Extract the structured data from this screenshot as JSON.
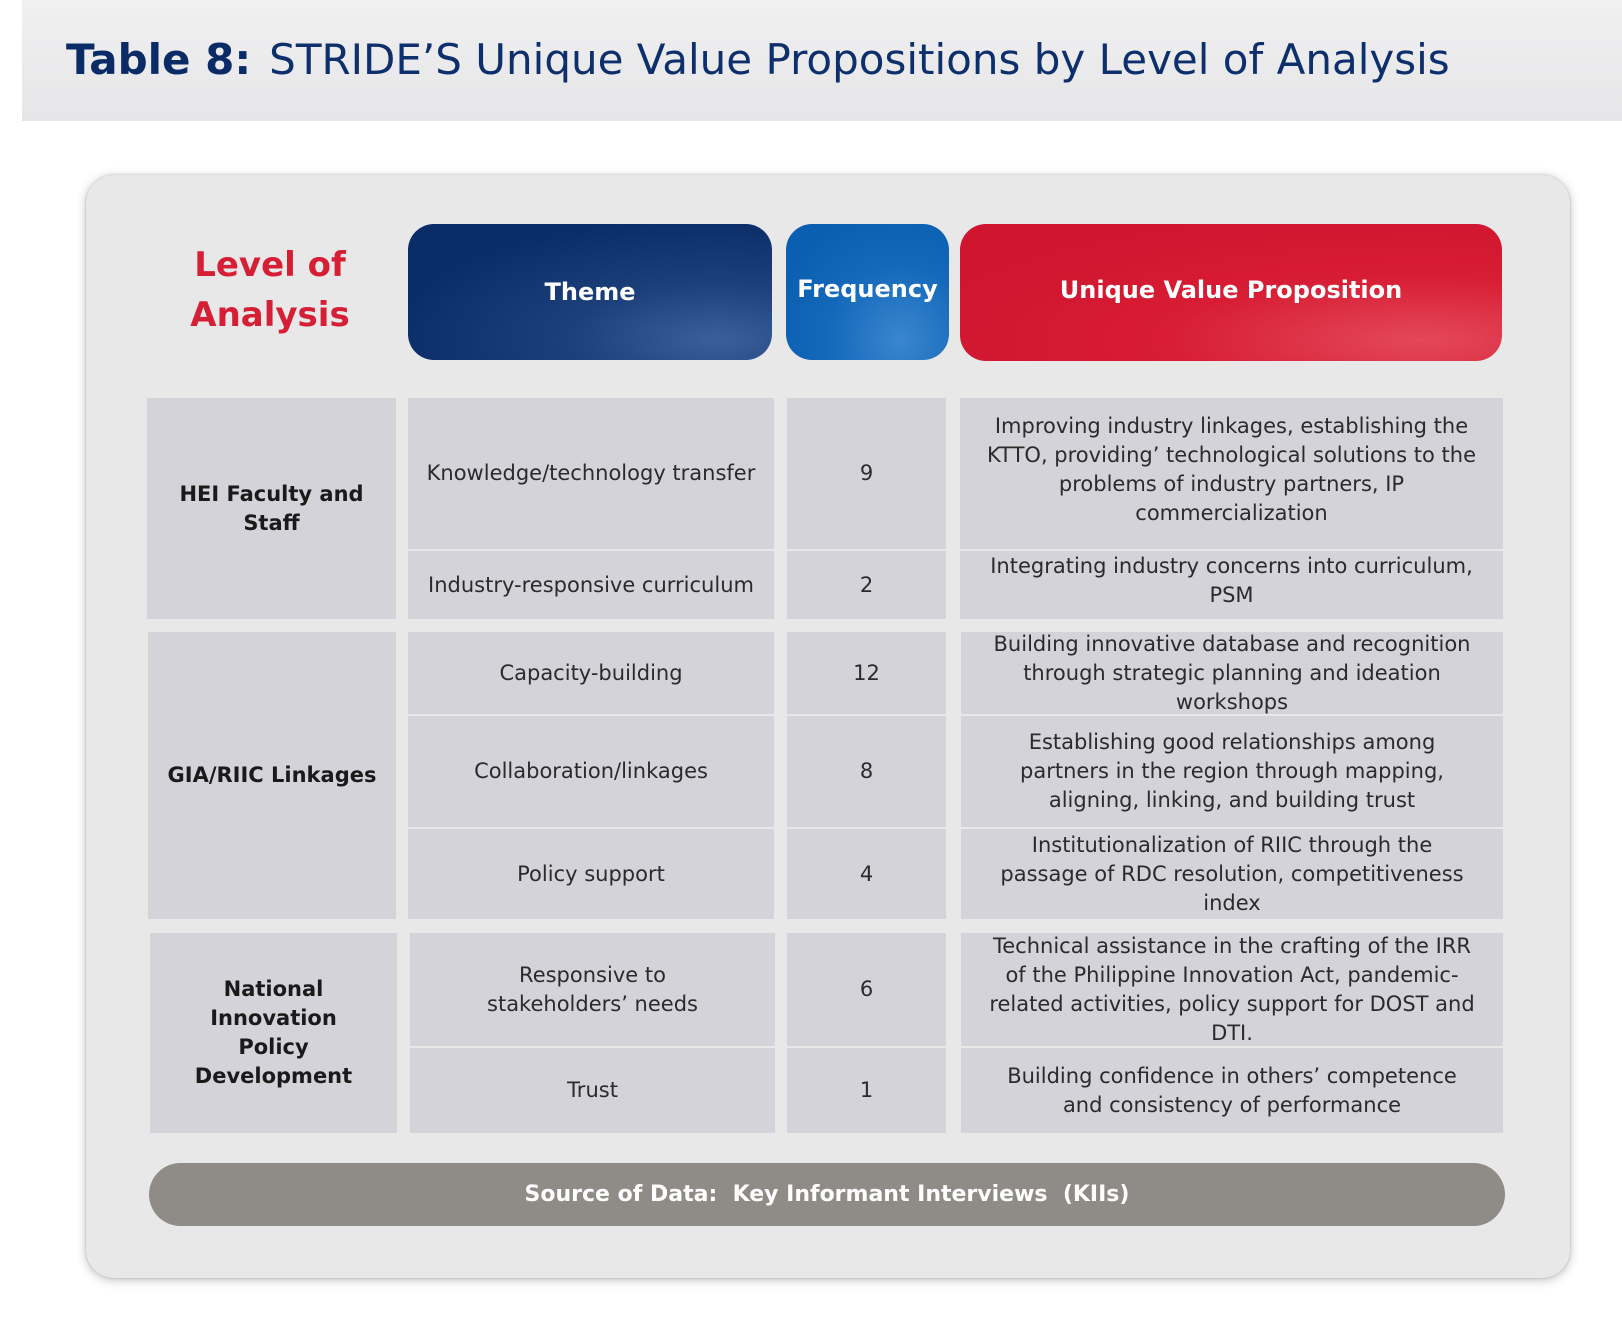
{
  "title": {
    "label": "Table 8:",
    "text": "STRIDE’S Unique Value Propositions by Level of Analysis"
  },
  "headers": {
    "level_line1": "Level of",
    "level_line2": "Analysis",
    "theme": "Theme",
    "frequency": "Frequency",
    "uvp": "Unique Value Proposition"
  },
  "groups": [
    {
      "level": "HEI Faculty and Staff",
      "rows": [
        {
          "theme": "Knowledge/technology transfer",
          "frequency": "9",
          "uvp": "Improving industry linkages, establishing the KTTO, providing’ technological solutions to the problems of industry partners, IP commercialization"
        },
        {
          "theme": "Industry-responsive curriculum",
          "frequency": "2",
          "uvp": "Integrating industry concerns into curriculum, PSM"
        }
      ]
    },
    {
      "level": "GIA/RIIC Linkages",
      "rows": [
        {
          "theme": "Capacity-building",
          "frequency": "12",
          "uvp": "Building innovative database and recognition through strategic planning and ideation workshops"
        },
        {
          "theme": "Collaboration/linkages",
          "frequency": "8",
          "uvp": "Establishing good relationships among partners in the region through mapping, aligning, linking, and building trust"
        },
        {
          "theme": "Policy support",
          "frequency": "4",
          "uvp": "Institutionalization of RIIC through the passage of RDC resolution, competitiveness index"
        }
      ]
    },
    {
      "level": "National Innovation Policy Development",
      "rows": [
        {
          "theme": "Responsive to stakeholders’ needs",
          "frequency": "6",
          "uvp": "Technical assistance in the crafting of the IRR of the Philippine Innovation Act, pandemic-related activities, policy support for DOST and DTI."
        },
        {
          "theme": "Trust",
          "frequency": "1",
          "uvp": "Building confidence in others’ competence and consistency of performance"
        }
      ]
    }
  ],
  "footer": "Source of Data:  Key Informant Interviews  (KIIs)"
}
